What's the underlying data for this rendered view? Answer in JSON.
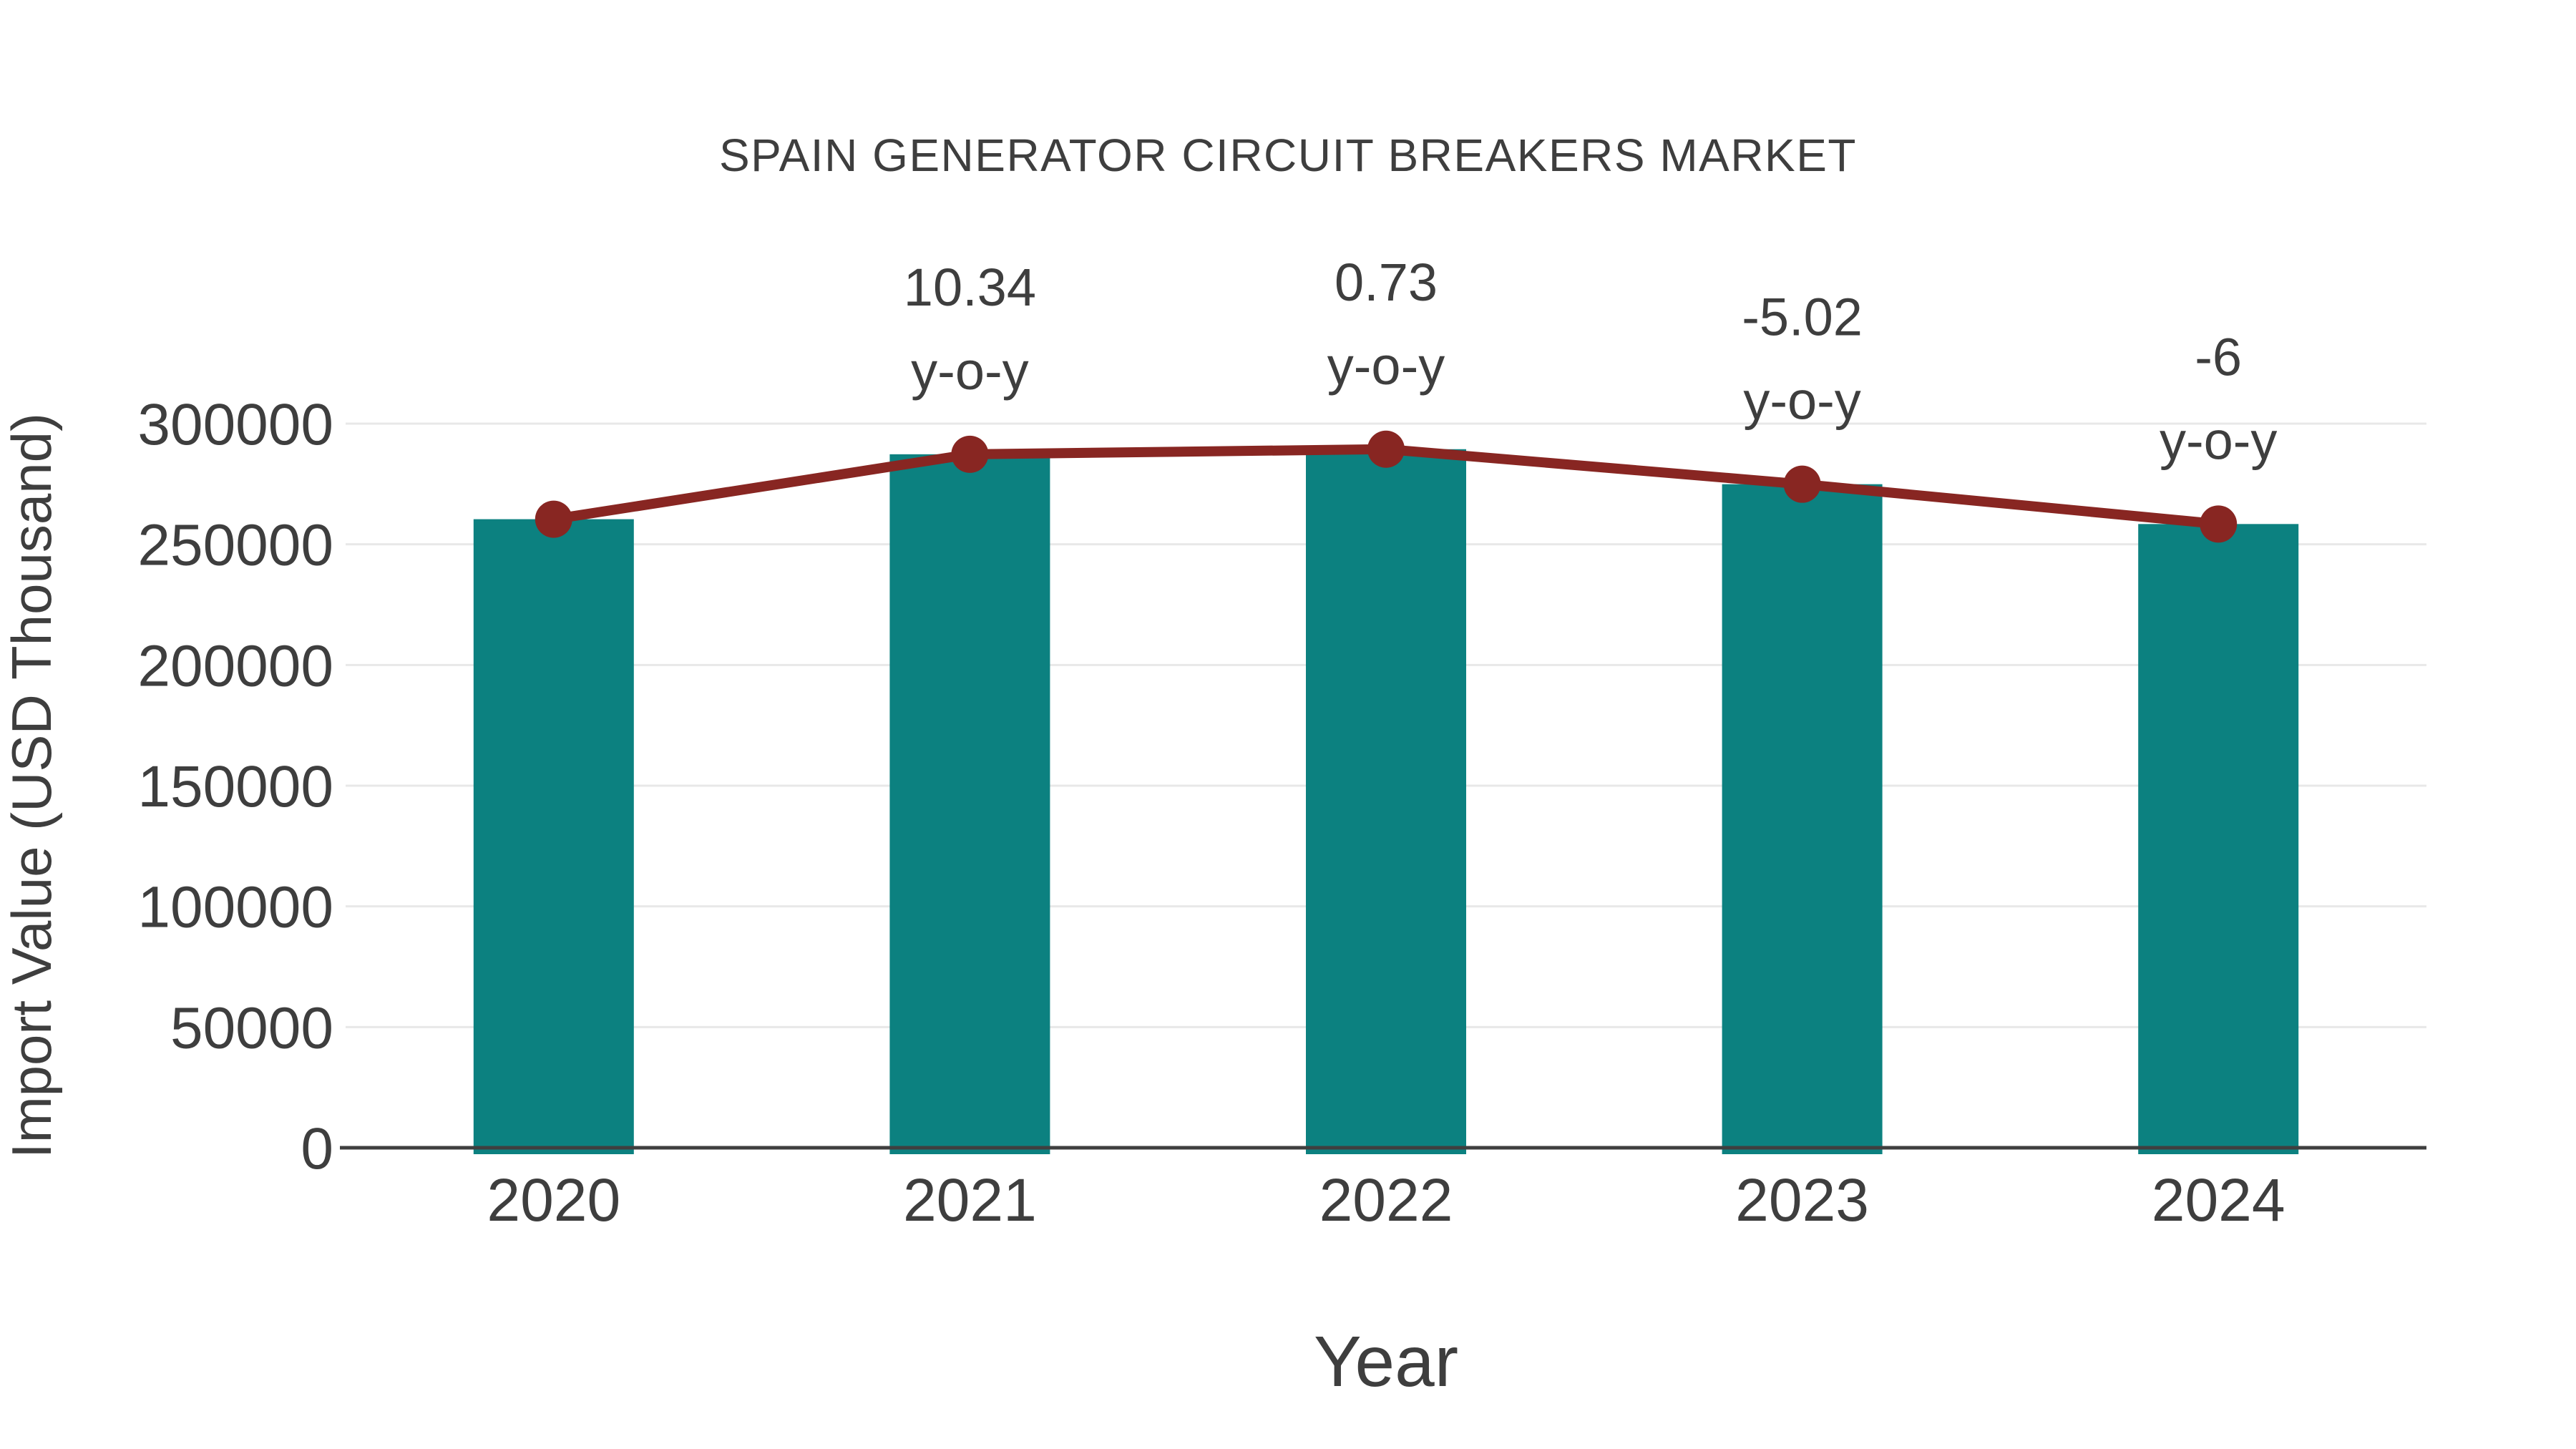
{
  "chart_data": {
    "type": "bar+line",
    "title": "SPAIN GENERATOR CIRCUIT BREAKERS MARKET",
    "xlabel": "Year",
    "ylabel": "Import Value (USD Thousand)",
    "categories": [
      "2020",
      "2021",
      "2022",
      "2023",
      "2024"
    ],
    "series": [
      {
        "name": "Import Value (USD Thousand)",
        "type": "bar",
        "color": "#0c8180",
        "values": [
          260400,
          287300,
          289400,
          274900,
          258400
        ]
      },
      {
        "name": "y-o-y trend",
        "type": "line",
        "color": "#882622",
        "marker": "circle",
        "values": [
          260400,
          287300,
          289400,
          274900,
          258400
        ],
        "yoy_percent": [
          null,
          10.34,
          0.73,
          -5.02,
          -6
        ]
      }
    ],
    "annotations": [
      {
        "category": "2021",
        "line1": "10.34",
        "line2": "y-o-y"
      },
      {
        "category": "2022",
        "line1": "0.73",
        "line2": "y-o-y"
      },
      {
        "category": "2023",
        "line1": "-5.02",
        "line2": "y-o-y"
      },
      {
        "category": "2024",
        "line1": "-6",
        "line2": "y-o-y"
      }
    ],
    "yticks": [
      0,
      50000,
      100000,
      150000,
      200000,
      250000,
      300000
    ],
    "ylim": [
      0,
      300000
    ],
    "grid": "horizontal",
    "legend": "none",
    "colors": {
      "grid": "#e8e8e8",
      "axis": "#3f3f3f",
      "text": "#3e3e3e"
    }
  }
}
